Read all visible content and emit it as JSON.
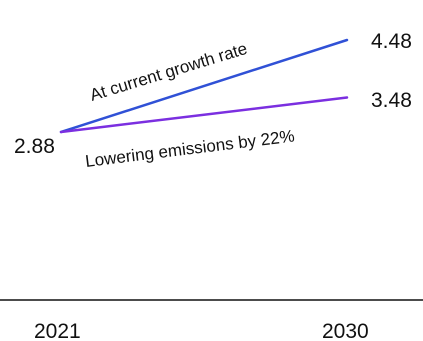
{
  "chart_data": {
    "type": "line",
    "x": [
      2021,
      2030
    ],
    "categories": [
      "2021",
      "2030"
    ],
    "series": [
      {
        "name": "At current growth rate",
        "values": [
          2.88,
          4.48
        ],
        "color": "#3051d6",
        "end_label": "4.48"
      },
      {
        "name": "Lowering emissions by 22%",
        "values": [
          2.88,
          3.48
        ],
        "color": "#7b2fe0",
        "end_label": "3.48"
      }
    ],
    "start_label": "2.88",
    "grid": false,
    "legend": "inline"
  }
}
